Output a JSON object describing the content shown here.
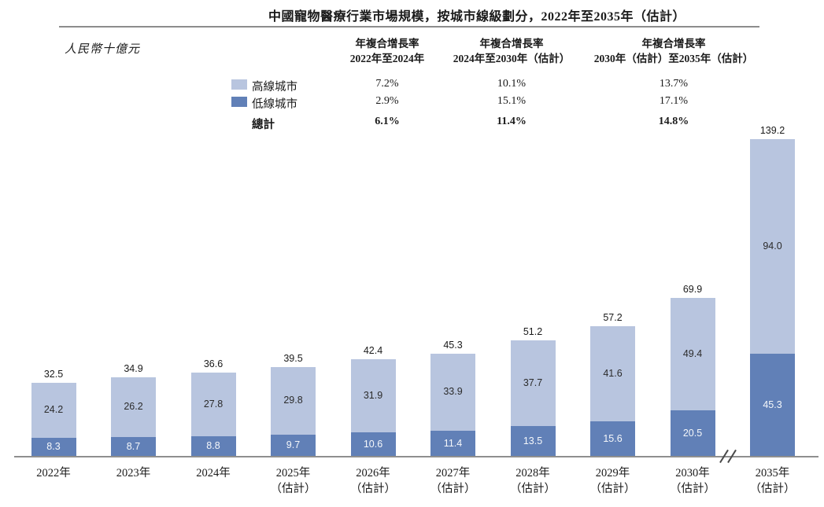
{
  "title": "中國寵物醫療行業市場規模，按城市線級劃分，2022年至2035年（估計）",
  "unit_label": "人民幣十億元",
  "colors": {
    "high_tier": "#b8c5df",
    "low_tier": "#6180b7",
    "axis": "#8f8f8f",
    "bar_label_dark": "#2b2b2b",
    "bar_label_light": "#f5f7fa"
  },
  "cagr_table": {
    "col_headers": [
      {
        "line1": "年複合增長率",
        "line2": "2022年至2024年"
      },
      {
        "line1": "年複合增長率",
        "line2": "2024年至2030年（估計）"
      },
      {
        "line1": "年複合增長率",
        "line2": "2030年（估計）至2035年（估計）"
      }
    ],
    "rows": [
      {
        "label": "高線城市",
        "values": [
          "7.2%",
          "10.1%",
          "13.7%"
        ]
      },
      {
        "label": "低線城市",
        "values": [
          "2.9%",
          "15.1%",
          "17.1%"
        ]
      },
      {
        "label": "總計",
        "values": [
          "6.1%",
          "11.4%",
          "14.8%"
        ]
      }
    ]
  },
  "chart_data": {
    "type": "bar",
    "stacked": true,
    "title": "中國寵物醫療行業市場規模，按城市線級劃分，2022年至2035年（估計）",
    "ylabel": "人民幣十億元",
    "legend_position": "top-left",
    "grid": false,
    "axis_break_before_last_category": true,
    "categories": [
      {
        "label": "2022年",
        "sub": ""
      },
      {
        "label": "2023年",
        "sub": ""
      },
      {
        "label": "2024年",
        "sub": ""
      },
      {
        "label": "2025年",
        "sub": "（估計）"
      },
      {
        "label": "2026年",
        "sub": "（估計）"
      },
      {
        "label": "2027年",
        "sub": "（估計）"
      },
      {
        "label": "2028年",
        "sub": "（估計）"
      },
      {
        "label": "2029年",
        "sub": "（估計）"
      },
      {
        "label": "2030年",
        "sub": "（估計）"
      },
      {
        "label": "2035年",
        "sub": "（估計）"
      }
    ],
    "series": [
      {
        "name": "高線城市",
        "color": "#b8c5df",
        "values": [
          24.2,
          26.2,
          27.8,
          29.8,
          31.9,
          33.9,
          37.7,
          41.6,
          49.4,
          94.0
        ]
      },
      {
        "name": "低線城市",
        "color": "#6180b7",
        "values": [
          8.3,
          8.7,
          8.8,
          9.7,
          10.6,
          11.4,
          13.5,
          15.6,
          20.5,
          45.3
        ]
      }
    ],
    "totals": [
      32.5,
      34.9,
      36.6,
      39.5,
      42.4,
      45.3,
      51.2,
      57.2,
      69.9,
      139.2
    ]
  }
}
